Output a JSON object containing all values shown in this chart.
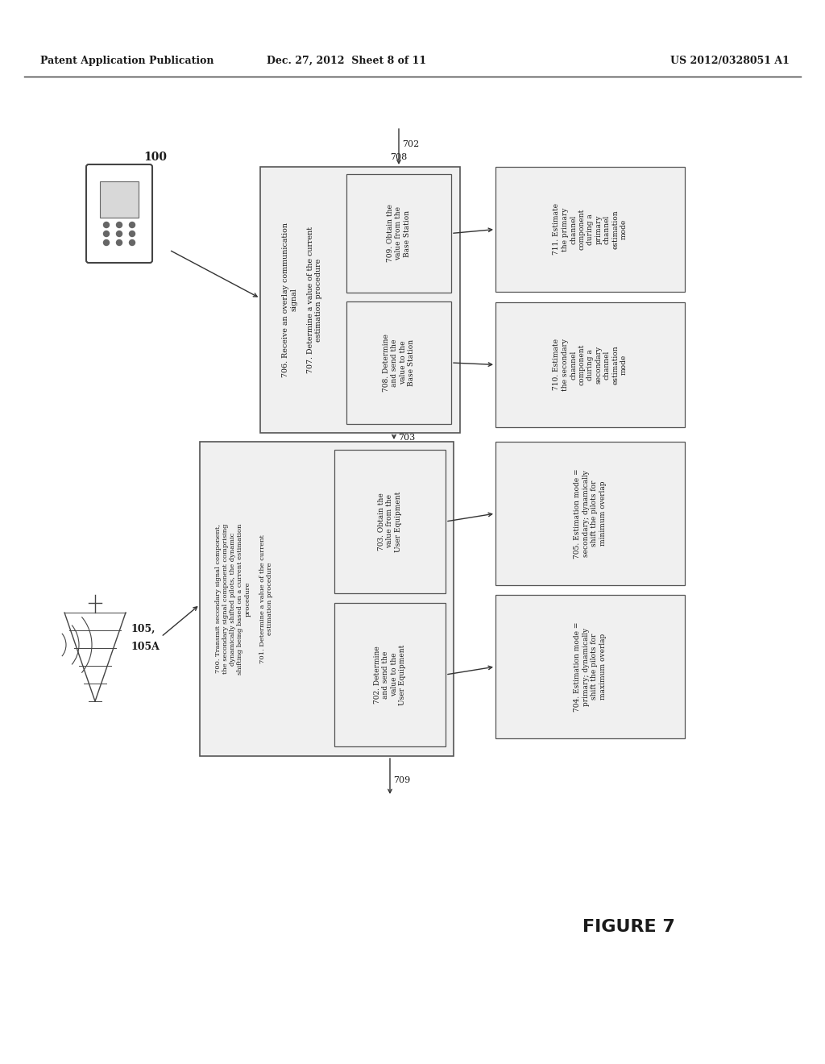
{
  "header_left": "Patent Application Publication",
  "header_mid": "Dec. 27, 2012  Sheet 8 of 11",
  "header_right": "US 2012/0328051 A1",
  "figure_label": "FIGURE 7",
  "bg_color": "#ffffff",
  "edge_color": "#555555",
  "fill_color": "#f0f0f0",
  "text_color": "#1a1a1a"
}
